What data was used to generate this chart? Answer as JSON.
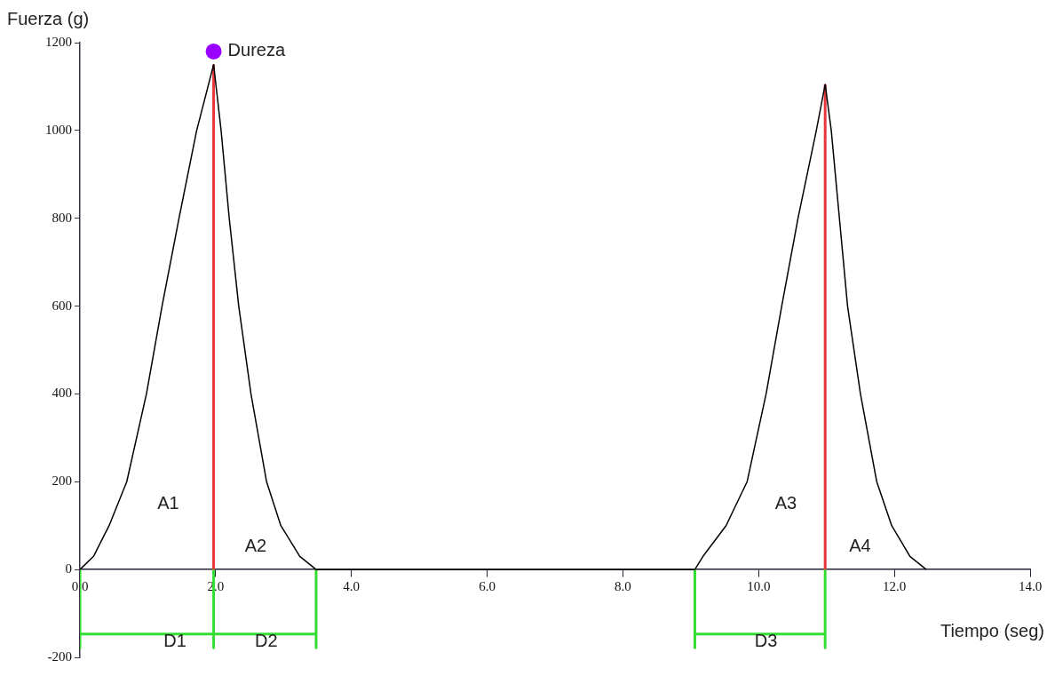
{
  "chart_data": {
    "type": "line",
    "xlabel": "Tiempo (seg)",
    "ylabel": "Fuerza (g)",
    "xlim": [
      0,
      14
    ],
    "ylim": [
      -200,
      1200
    ],
    "xticks": [
      {
        "value": 0,
        "label": "0.0"
      },
      {
        "value": 2,
        "label": "2.0"
      },
      {
        "value": 4,
        "label": "4.0"
      },
      {
        "value": 6,
        "label": "6.0"
      },
      {
        "value": 8,
        "label": "8.0"
      },
      {
        "value": 10,
        "label": "10.0"
      },
      {
        "value": 12,
        "label": "12.0"
      },
      {
        "value": 14,
        "label": "14.0"
      }
    ],
    "yticks": [
      -200,
      0,
      200,
      400,
      600,
      800,
      1000,
      1200
    ],
    "grid": false,
    "legend": false,
    "marker": "none",
    "line_style": "solid",
    "series": [
      {
        "color": "#000000",
        "x": [
          0,
          0.2,
          0.43,
          0.69,
          0.98,
          1.21,
          1.46,
          1.72,
          1.97,
          2.08,
          2.2,
          2.34,
          2.52,
          2.75,
          2.96,
          3.24,
          3.48,
          9.06,
          9.18,
          9.52,
          9.83,
          10.11,
          10.34,
          10.58,
          10.85,
          10.98,
          11.07,
          11.19,
          11.31,
          11.5,
          11.74,
          11.96,
          12.23,
          12.47
        ],
        "values": [
          0,
          30,
          100,
          200,
          400,
          600,
          800,
          1000,
          1150,
          1000,
          800,
          600,
          400,
          200,
          100,
          30,
          0,
          0,
          30,
          100,
          200,
          400,
          600,
          800,
          1000,
          1105,
          1000,
          800,
          600,
          400,
          200,
          100,
          30,
          0
        ]
      },
      {
        "color": "#e8363a",
        "x": [
          1.97,
          1.97,
          null,
          10.98,
          10.98
        ],
        "values": [
          0,
          1150,
          null,
          0,
          1105
        ]
      },
      {
        "color": "#33dd33",
        "x": [
          0,
          0,
          null,
          1.97,
          1.97,
          null,
          3.48,
          3.48,
          null,
          0,
          3.48,
          null,
          9.06,
          9.06,
          null,
          10.98,
          10.98,
          null,
          9.06,
          10.98
        ],
        "values": [
          0,
          -178,
          null,
          0,
          -178,
          null,
          0,
          -178,
          null,
          -147,
          -147,
          null,
          0,
          -178,
          null,
          0,
          -178,
          null,
          -147,
          -147
        ]
      },
      {
        "type": "scatter",
        "name": "Dureza",
        "color": "#9900ff",
        "marker": "circle",
        "x": [
          1.97
        ],
        "values": [
          1180
        ]
      }
    ],
    "annotations": [
      "A1",
      "A2",
      "A3",
      "A4",
      "D1",
      "D2",
      "D3"
    ]
  }
}
